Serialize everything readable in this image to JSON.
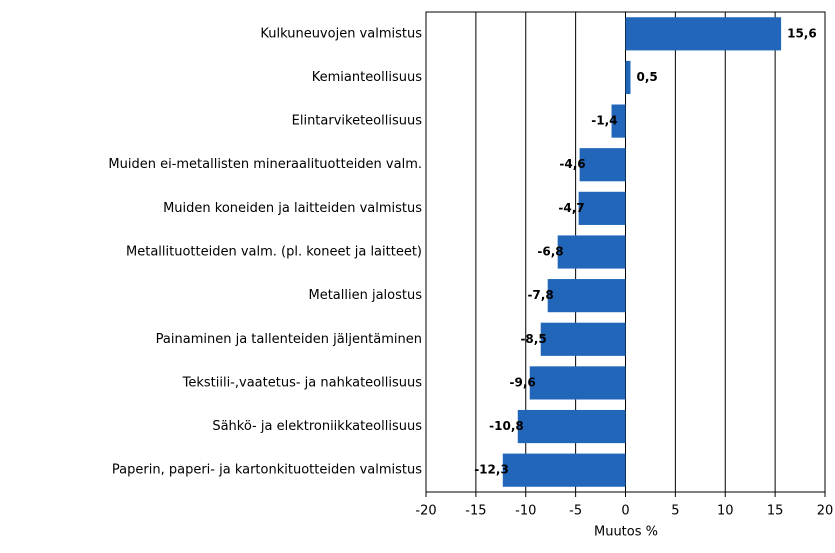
{
  "chart_data": {
    "type": "bar",
    "orientation": "horizontal",
    "categories": [
      "Kulkuneuvojen valmistus",
      "Kemianteollisuus",
      "Elintarviketeollisuus",
      "Muiden ei-metallisten mineraalituotteiden valm.",
      "Muiden koneiden ja laitteiden valmistus",
      "Metallituotteiden valm. (pl. koneet ja laitteet)",
      "Metallien jalostus",
      "Painaminen ja tallenteiden jäljentäminen",
      "Tekstiili-,vaatetus- ja nahkateollisuus",
      "Sähkö- ja elektroniikkateollisuus",
      "Paperin, paperi- ja kartonkituotteiden valmistus"
    ],
    "values": [
      15.6,
      0.5,
      -1.4,
      -4.6,
      -4.7,
      -6.8,
      -7.8,
      -8.5,
      -9.6,
      -10.8,
      -12.3
    ],
    "value_labels": [
      "15,6",
      "0,5",
      "-1,4",
      "-4,6",
      "-4,7",
      "-6,8",
      "-7,8",
      "-8,5",
      "-9,6",
      "-10,8",
      "-12,3"
    ],
    "color": "#2166b8",
    "xlim": [
      -20,
      20
    ],
    "xticks": [
      -20,
      -15,
      -10,
      -5,
      0,
      5,
      10,
      15,
      20
    ],
    "x_label": "Muutos %",
    "grid": true
  }
}
